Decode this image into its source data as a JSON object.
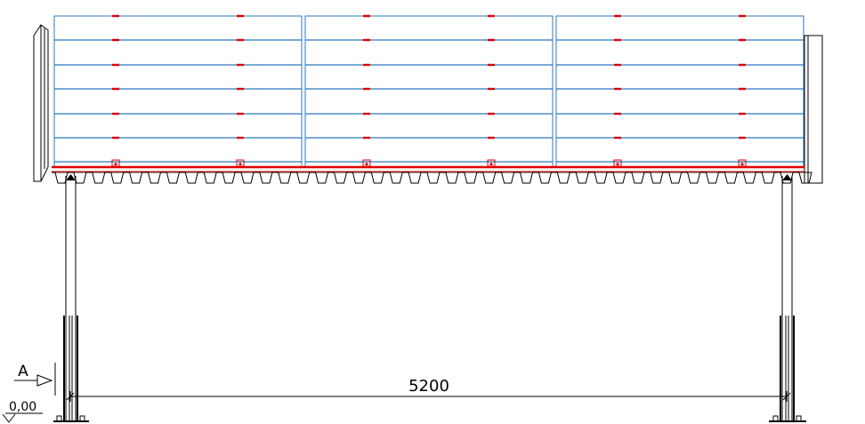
{
  "drawing": {
    "dimension_label": "5200",
    "section_marker": "A",
    "level_label": "0,00"
  },
  "structure": {
    "panel_count": 3,
    "board_rows": 7,
    "support_posts": 2
  },
  "colors": {
    "panel_outline": "#2a78c4",
    "fastener": "#e00000",
    "rail": "#e00000",
    "structure": "#000000"
  }
}
